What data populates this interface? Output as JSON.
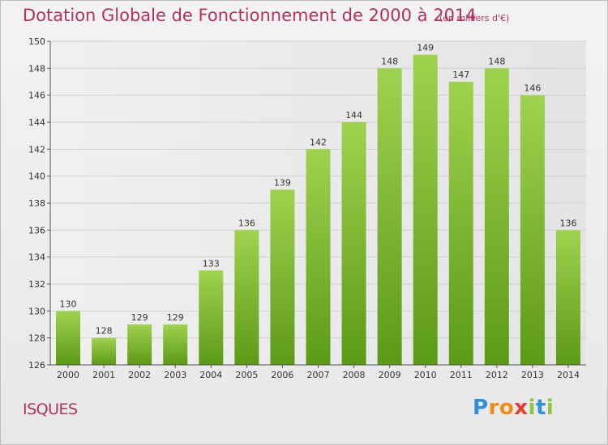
{
  "header": {
    "title": "Dotation Globale de Fonctionnement de 2000 à 2014",
    "subtitle": "(en milliers d'€)"
  },
  "footer": {
    "commune": "ISQUES",
    "brand_letters": [
      "P",
      "r",
      "o",
      "x",
      "i",
      "t",
      "i"
    ]
  },
  "colors": {
    "title": "#b0335a",
    "bar_top": "#9fd24f",
    "bar_bottom": "#5c9a16"
  },
  "chart_data": {
    "type": "bar",
    "title": "Dotation Globale de Fonctionnement de 2000 à 2014",
    "subtitle": "(en milliers d'€)",
    "xlabel": "",
    "ylabel": "",
    "categories": [
      "2000",
      "2001",
      "2002",
      "2003",
      "2004",
      "2005",
      "2006",
      "2007",
      "2008",
      "2009",
      "2010",
      "2011",
      "2012",
      "2013",
      "2014"
    ],
    "values": [
      130,
      128,
      129,
      129,
      133,
      136,
      139,
      142,
      144,
      148,
      149,
      147,
      148,
      146,
      136
    ],
    "ylim": [
      126,
      150
    ],
    "yticks": [
      126,
      128,
      130,
      132,
      134,
      136,
      138,
      140,
      142,
      144,
      146,
      148,
      150
    ],
    "grid": true
  }
}
